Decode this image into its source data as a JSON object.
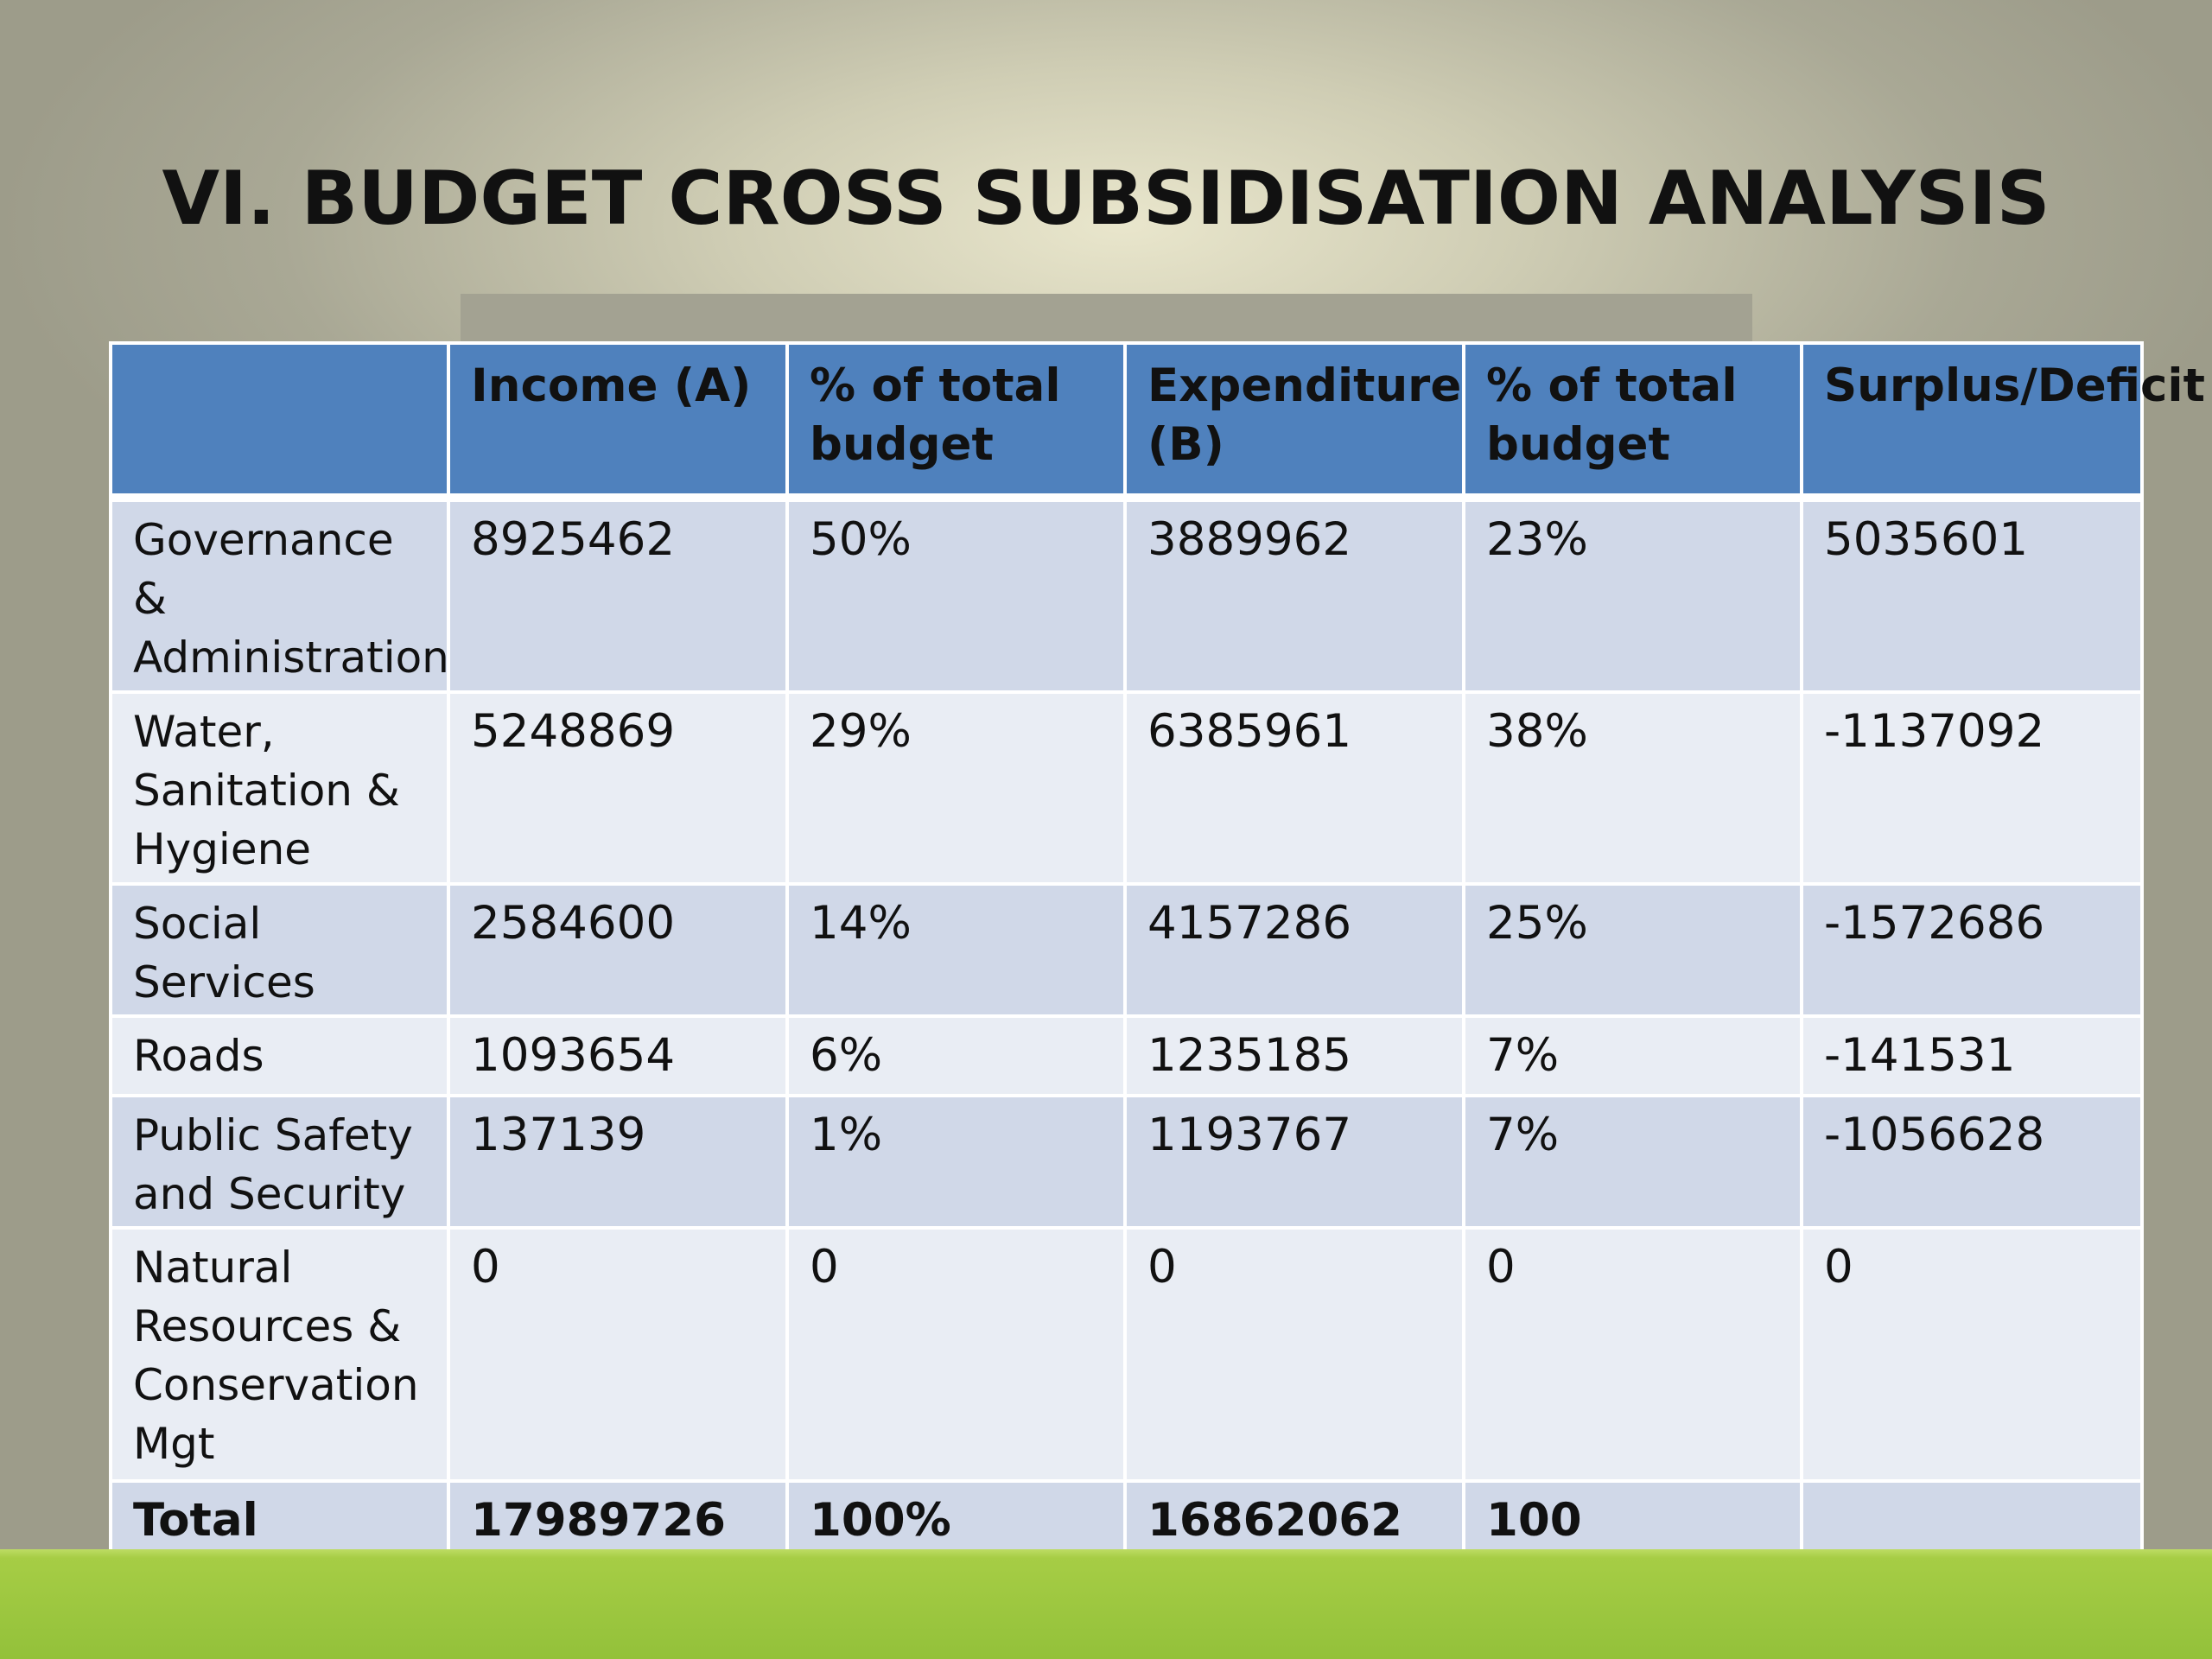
{
  "title": "VI. BUDGET CROSS SUBSIDISATION ANALYSIS",
  "table": {
    "headers": [
      "",
      "Income (A)",
      "% of total budget",
      "Expenditure (B)",
      "% of total budget",
      "Surplus/Deficit"
    ],
    "rows": [
      {
        "label": "Governance & Administration",
        "income": "8925462",
        "income_pct": "50%",
        "expenditure": "3889962",
        "expenditure_pct": "23%",
        "surplus": "5035601"
      },
      {
        "label": "Water, Sanitation & Hygiene",
        "income": "5248869",
        "income_pct": "29%",
        "expenditure": "6385961",
        "expenditure_pct": "38%",
        "surplus": "-1137092"
      },
      {
        "label": "Social Services",
        "income": "2584600",
        "income_pct": "14%",
        "expenditure": "4157286",
        "expenditure_pct": "25%",
        "surplus": "-1572686"
      },
      {
        "label": "Roads",
        "income": "1093654",
        "income_pct": "6%",
        "expenditure": "1235185",
        "expenditure_pct": "7%",
        "surplus": "-141531"
      },
      {
        "label": "Public Safety and Security",
        "income": "137139",
        "income_pct": "1%",
        "expenditure": "1193767",
        "expenditure_pct": "7%",
        "surplus": "-1056628"
      },
      {
        "label": "Natural Resources & Conservation Mgt",
        "income": "0",
        "income_pct": "0",
        "expenditure": "0",
        "expenditure_pct": "0",
        "surplus": "0"
      }
    ],
    "total": {
      "label": "Total",
      "income": "17989726",
      "income_pct": "100%",
      "expenditure": "16862062",
      "expenditure_pct": "100",
      "surplus": ""
    }
  },
  "colors": {
    "header": "#4f81bd",
    "row_dark": "#d0d8e8",
    "row_light": "#e9edf4",
    "footer_band": "#9bc53f"
  }
}
